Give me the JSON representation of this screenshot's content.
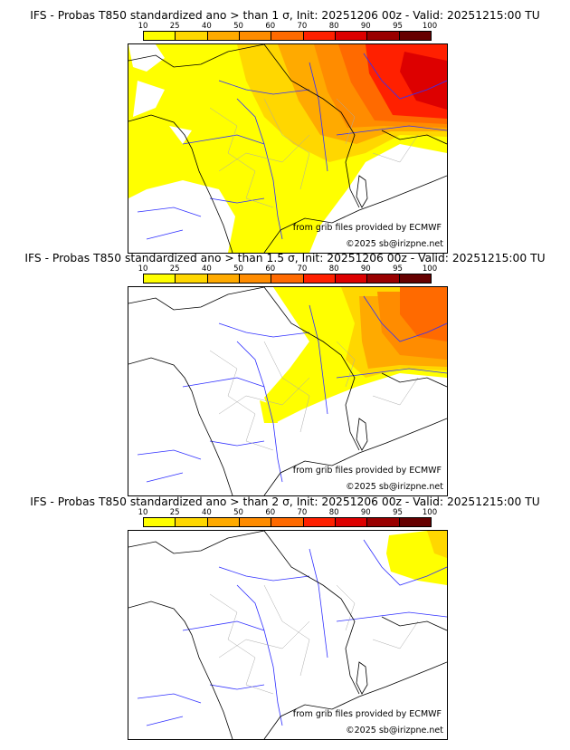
{
  "colorbar": {
    "ticks": [
      "10",
      "25",
      "40",
      "50",
      "60",
      "70",
      "80",
      "90",
      "95",
      "100"
    ],
    "colors": [
      "#ffff00",
      "#ffd700",
      "#ffaa00",
      "#ff8c00",
      "#ff6a00",
      "#ff2000",
      "#dd0000",
      "#990000",
      "#660000"
    ]
  },
  "panels": [
    {
      "title": "IFS - Probas T850  standardized ano > than 1 σ, Init: 20251206 00z - Valid: 20251215:00 TU"
    },
    {
      "title": "IFS - Probas T850  standardized ano > than 1.5 σ, Init: 20251206 00z - Valid: 20251215:00 TU"
    },
    {
      "title": "IFS - Probas T850  standardized ano > than 2 σ, Init: 20251206 00z - Valid: 20251215:00 TU"
    }
  ],
  "credits": {
    "source": "from grib files provided by ECMWF",
    "copyright": "©2025 sb@irizpne.net"
  }
}
